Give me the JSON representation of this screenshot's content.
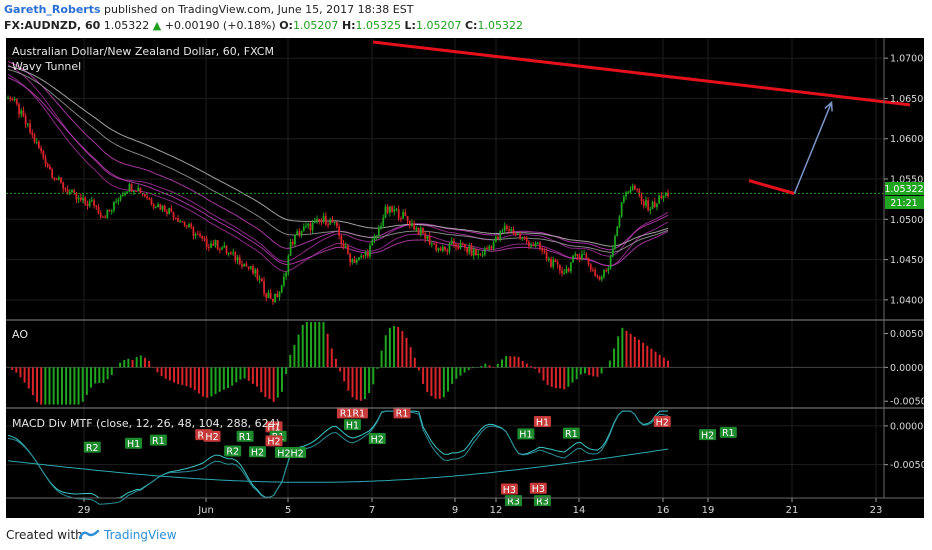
{
  "header": {
    "author": "Gareth_Roberts",
    "published": "published on TradingView.com, June 15, 2017 18:38 EST",
    "symbol": "FX:AUDNZD, 60",
    "last": "1.05322",
    "change": "+0.00190 (+0.18%)",
    "o_label": "O:",
    "o": "1.05207",
    "h_label": "H:",
    "h": "1.05325",
    "l_label": "L:",
    "l": "1.05207",
    "c_label": "C:",
    "c": "1.05322"
  },
  "panes": {
    "main_title": "Australian Dollar/New Zealand Dollar, 60, FXCM",
    "main_indicator": "Wavy Tunnel",
    "ao_title": "AO",
    "macd_title": "MACD Div MTF (close, 12, 26, 48, 104, 288, 624)"
  },
  "price_badge": {
    "price": "1.05322",
    "countdown": "21:21"
  },
  "footer": {
    "created": "Created with",
    "brand": "TradingView"
  },
  "colors": {
    "up": "#1fa51f",
    "down": "#d8242a",
    "bg": "#000000",
    "trend": "#e5101c",
    "arrow": "#7b96c8",
    "price_line": "#1fa51f"
  },
  "chart_data": {
    "type": "candlestick",
    "x_tick_labels": [
      "29",
      "Jun",
      "5",
      "7",
      "9",
      "12",
      "14",
      "16",
      "19",
      "21",
      "23"
    ],
    "price_axis": {
      "ylim": [
        1.0375,
        1.0725
      ],
      "ticks": [
        "1.07000",
        "1.06500",
        "1.06000",
        "1.05500",
        "1.05000",
        "1.04500",
        "1.04000"
      ]
    },
    "price_path": [
      1.0655,
      1.064,
      1.062,
      1.06,
      1.058,
      1.056,
      1.0545,
      1.0535,
      1.0525,
      1.052,
      1.052,
      1.0505,
      1.051,
      1.053,
      1.054,
      1.054,
      1.053,
      1.052,
      1.0515,
      1.051,
      1.05,
      1.049,
      1.048,
      1.047,
      1.047,
      1.0465,
      1.0455,
      1.045,
      1.044,
      1.043,
      1.041,
      1.04,
      1.0415,
      1.047,
      1.0485,
      1.049,
      1.0495,
      1.05,
      1.0495,
      1.047,
      1.045,
      1.045,
      1.046,
      1.048,
      1.051,
      1.051,
      1.0505,
      1.0495,
      1.0485,
      1.0475,
      1.0465,
      1.046,
      1.047,
      1.0465,
      1.046,
      1.0455,
      1.0465,
      1.0475,
      1.049,
      1.0485,
      1.0475,
      1.047,
      1.0465,
      1.045,
      1.044,
      1.0435,
      1.045,
      1.046,
      1.044,
      1.0425,
      1.044,
      1.049,
      1.0535,
      1.054,
      1.052,
      1.0515,
      1.0525,
      1.0532
    ],
    "trendlines": [
      {
        "name": "upper red line",
        "from": {
          "x_day": 7.0,
          "price": 1.072
        },
        "to": {
          "x_day": 20.0,
          "price": 1.0642
        }
      },
      {
        "name": "short red line",
        "from": {
          "x_day": 16.1,
          "price": 1.0548
        },
        "to": {
          "x_day": 17.2,
          "price": 1.0532
        }
      }
    ],
    "arrow": {
      "from": {
        "x_day": 17.2,
        "price": 1.0532
      },
      "to": {
        "x_day": 18.1,
        "price": 1.0645
      }
    },
    "ao": {
      "ylim": [
        -0.006,
        0.007
      ],
      "ticks": [
        "0.0050",
        "0.0000",
        "-0.0050"
      ]
    },
    "macd": {
      "ylim": [
        -0.0093,
        0.0023
      ],
      "ticks": [
        "0.0000",
        "-0.0050"
      ],
      "labels": [
        {
          "t": "R2",
          "kind": "support",
          "x_day": 0.2,
          "v": -0.0028
        },
        {
          "t": "H1",
          "kind": "support",
          "x_day": 1.2,
          "v": -0.0023
        },
        {
          "t": "R1",
          "kind": "support",
          "x_day": 1.8,
          "v": -0.0019
        },
        {
          "t": "R2",
          "kind": "resist",
          "x_day": 2.9,
          "v": -0.0012
        },
        {
          "t": "H2",
          "kind": "resist",
          "x_day": 3.1,
          "v": -0.0014
        },
        {
          "t": "R1",
          "kind": "support",
          "x_day": 3.9,
          "v": -0.0014
        },
        {
          "t": "R2",
          "kind": "support",
          "x_day": 3.6,
          "v": -0.0033
        },
        {
          "t": "H2",
          "kind": "support",
          "x_day": 4.2,
          "v": -0.0034
        },
        {
          "t": "H1",
          "kind": "resist",
          "x_day": 4.6,
          "v": -0.0002
        },
        {
          "t": "R1",
          "kind": "support",
          "x_day": 4.7,
          "v": -0.0014
        },
        {
          "t": "H2",
          "kind": "resist",
          "x_day": 4.6,
          "v": -0.002
        },
        {
          "t": "H2H2",
          "kind": "support",
          "x_day": 5.0,
          "v": -0.0035
        },
        {
          "t": "R1R1",
          "kind": "resist",
          "x_day": 6.5,
          "v": 0.0016
        },
        {
          "t": "H1",
          "kind": "support",
          "x_day": 6.5,
          "v": 0.0001
        },
        {
          "t": "H2",
          "kind": "support",
          "x_day": 7.1,
          "v": -0.0017
        },
        {
          "t": "R1",
          "kind": "resist",
          "x_day": 7.7,
          "v": 0.0016
        },
        {
          "t": "H1",
          "kind": "support",
          "x_day": 10.7,
          "v": -0.0011
        },
        {
          "t": "R1",
          "kind": "support",
          "x_day": 11.8,
          "v": -0.001
        },
        {
          "t": "H1",
          "kind": "resist",
          "x_day": 11.1,
          "v": 0.0005
        },
        {
          "t": "H2",
          "kind": "resist",
          "x_day": 14.0,
          "v": 0.0005
        },
        {
          "t": "H2",
          "kind": "support",
          "x_day": 15.1,
          "v": -0.0012
        },
        {
          "t": "R1",
          "kind": "support",
          "x_day": 15.6,
          "v": -0.0009
        },
        {
          "t": "H3",
          "kind": "resist",
          "x_day": 10.3,
          "v": -0.0082
        },
        {
          "t": "H3",
          "kind": "resist",
          "x_day": 11.0,
          "v": -0.0081
        },
        {
          "t": "R3",
          "kind": "support",
          "x_day": 10.4,
          "v": -0.0097
        },
        {
          "t": "R3",
          "kind": "support",
          "x_day": 11.1,
          "v": -0.0097
        }
      ]
    }
  }
}
